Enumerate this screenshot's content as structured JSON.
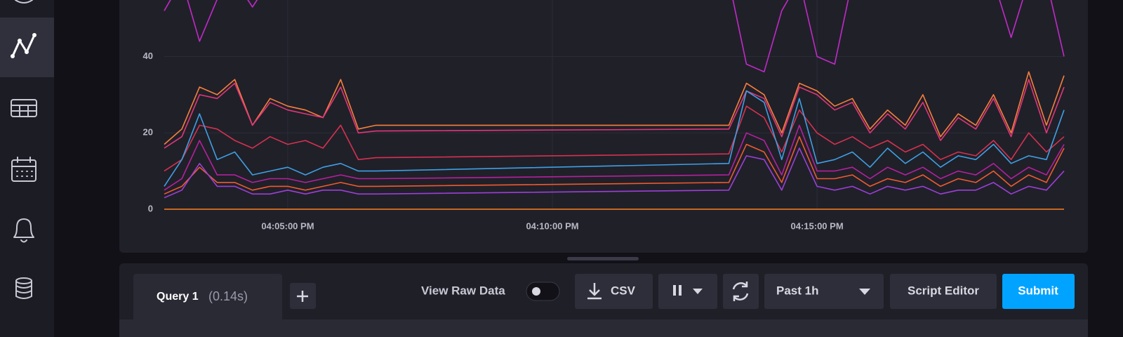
{
  "chart_data": {
    "type": "line",
    "x": [
      "16:02:40",
      "16:03:00",
      "16:03:20",
      "16:03:40",
      "16:04:00",
      "16:04:20",
      "16:04:40",
      "16:05:00",
      "16:05:20",
      "16:05:40",
      "16:06:00",
      "16:06:20",
      "16:06:40",
      "16:13:20",
      "16:13:40",
      "16:14:00",
      "16:14:20",
      "16:14:40",
      "16:15:00",
      "16:15:20",
      "16:15:40",
      "16:16:00",
      "16:16:20",
      "16:16:40",
      "16:17:00",
      "16:17:20",
      "16:17:40",
      "16:18:00",
      "16:18:20",
      "16:18:40",
      "16:19:00",
      "16:19:20",
      "16:19:40"
    ],
    "series": [
      {
        "color": "#f7803b",
        "values": [
          17,
          21,
          32,
          30,
          34,
          22,
          29,
          27,
          26,
          24,
          34,
          21,
          22,
          22,
          33,
          30,
          20,
          33,
          31,
          27,
          29,
          21,
          26,
          22,
          30,
          19,
          25,
          22,
          30,
          20,
          36,
          22,
          35
        ]
      },
      {
        "color": "#c22ac8",
        "values": [
          52,
          60,
          44,
          55,
          60,
          53,
          60,
          60,
          60,
          60,
          60,
          60,
          60,
          60,
          38,
          36,
          52,
          60,
          40,
          38,
          60,
          60,
          60,
          60,
          60,
          60,
          60,
          60,
          60,
          45,
          60,
          60,
          40
        ]
      },
      {
        "color": "#e0367a",
        "values": [
          16,
          19,
          30,
          29,
          33,
          22,
          28,
          26,
          25,
          24,
          32,
          20,
          20.5,
          21,
          31,
          29,
          19,
          32,
          30,
          26,
          28,
          20,
          25,
          21,
          28,
          18,
          24,
          21,
          29,
          19,
          34,
          20,
          32
        ]
      },
      {
        "color": "#d6314f",
        "values": [
          10,
          13,
          22,
          21,
          18,
          16,
          19,
          17,
          18,
          16,
          22,
          13,
          13.5,
          14.5,
          27,
          24,
          15,
          26,
          20,
          17,
          19,
          16,
          18,
          15,
          17,
          13,
          15,
          14,
          18,
          13,
          20,
          15,
          19
        ]
      },
      {
        "color": "#3ea0e4",
        "values": [
          6,
          13,
          25,
          13,
          15,
          9,
          10,
          11,
          9,
          11,
          12,
          10,
          10,
          12,
          31,
          28,
          13,
          29,
          12,
          13,
          15,
          11,
          16,
          12,
          15,
          11,
          14,
          13,
          17,
          12,
          14,
          13,
          26
        ]
      },
      {
        "color": "#b5209e",
        "values": [
          5,
          8,
          18,
          9,
          9,
          7,
          8,
          8,
          7,
          8,
          9,
          8,
          8,
          9,
          20,
          18,
          9,
          22,
          10,
          10,
          11,
          8,
          11,
          9,
          11,
          8,
          10,
          9,
          12,
          8,
          11,
          9,
          17
        ]
      },
      {
        "color": "#ee5a30",
        "values": [
          4,
          6,
          11,
          7,
          7,
          5,
          6,
          6,
          5,
          6,
          7,
          6,
          6,
          7,
          17,
          15,
          7,
          19,
          8,
          8,
          9,
          6,
          8,
          7,
          9,
          6,
          8,
          7,
          10,
          6,
          9,
          7,
          16
        ]
      },
      {
        "color": "#9c3fd6",
        "values": [
          3,
          5,
          12,
          6,
          6,
          4,
          4,
          5,
          4,
          5,
          5,
          4,
          4,
          5,
          14,
          13,
          5,
          16,
          6,
          5,
          6,
          4,
          6,
          5,
          6,
          4,
          5,
          5,
          7,
          4,
          6,
          5,
          10
        ]
      },
      {
        "color": "#ff7f1e",
        "values": [
          0,
          0,
          0,
          0,
          0,
          0,
          0,
          0,
          0,
          0,
          0,
          0,
          0,
          0,
          0,
          0,
          0,
          0,
          0,
          0,
          0,
          0,
          0,
          0,
          0,
          0,
          0,
          0,
          0,
          0,
          0,
          0,
          0
        ]
      }
    ],
    "xlim": [
      "16:02:40",
      "16:19:40"
    ],
    "xticks": [
      {
        "value": "16:05:00",
        "label": "04:05:00 PM"
      },
      {
        "value": "16:10:00",
        "label": "04:10:00 PM"
      },
      {
        "value": "16:15:00",
        "label": "04:15:00 PM"
      }
    ],
    "ylim": [
      0,
      55
    ],
    "yticks": [
      0,
      20,
      40
    ],
    "grid": true
  },
  "query_tabs": [
    {
      "name": "Query 1",
      "duration": "(0.14s)"
    }
  ],
  "toolbar": {
    "raw_data_toggle": "View Raw Data",
    "csv": "CSV",
    "time_range": "Past 1h",
    "script_editor": "Script Editor",
    "submit": "Submit"
  }
}
